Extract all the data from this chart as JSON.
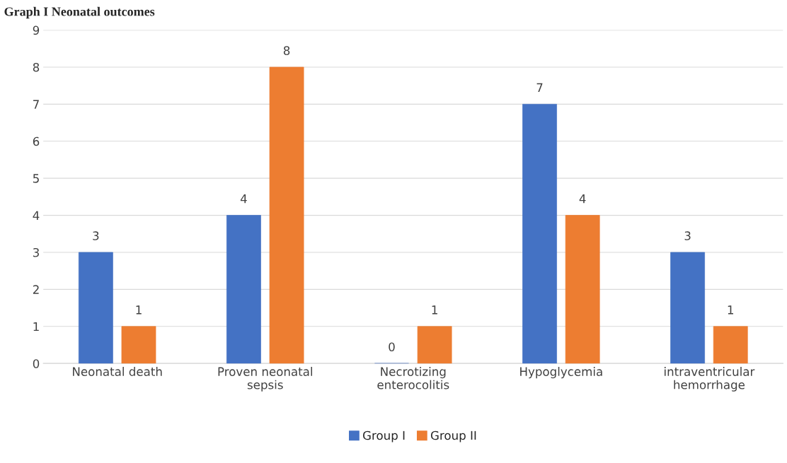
{
  "chart_data": {
    "type": "bar",
    "title": "Graph I Neonatal outcomes",
    "categories": [
      "Neonatal death",
      "Proven neonatal\nsepsis",
      "Necrotizing\nenterocolitis",
      "Hypoglycemia",
      "intraventricular\nhemorrhage"
    ],
    "series": [
      {
        "name": "Group I",
        "color": "#4472c4",
        "values": [
          3,
          4,
          0,
          7,
          3
        ]
      },
      {
        "name": "Group II",
        "color": "#ed7d31",
        "values": [
          1,
          8,
          1,
          4,
          1
        ]
      }
    ],
    "ylim": [
      0,
      9
    ],
    "yticks": [
      0,
      1,
      2,
      3,
      4,
      5,
      6,
      7,
      8,
      9
    ],
    "grid": "y",
    "legend": "bottom",
    "data_labels": true
  }
}
